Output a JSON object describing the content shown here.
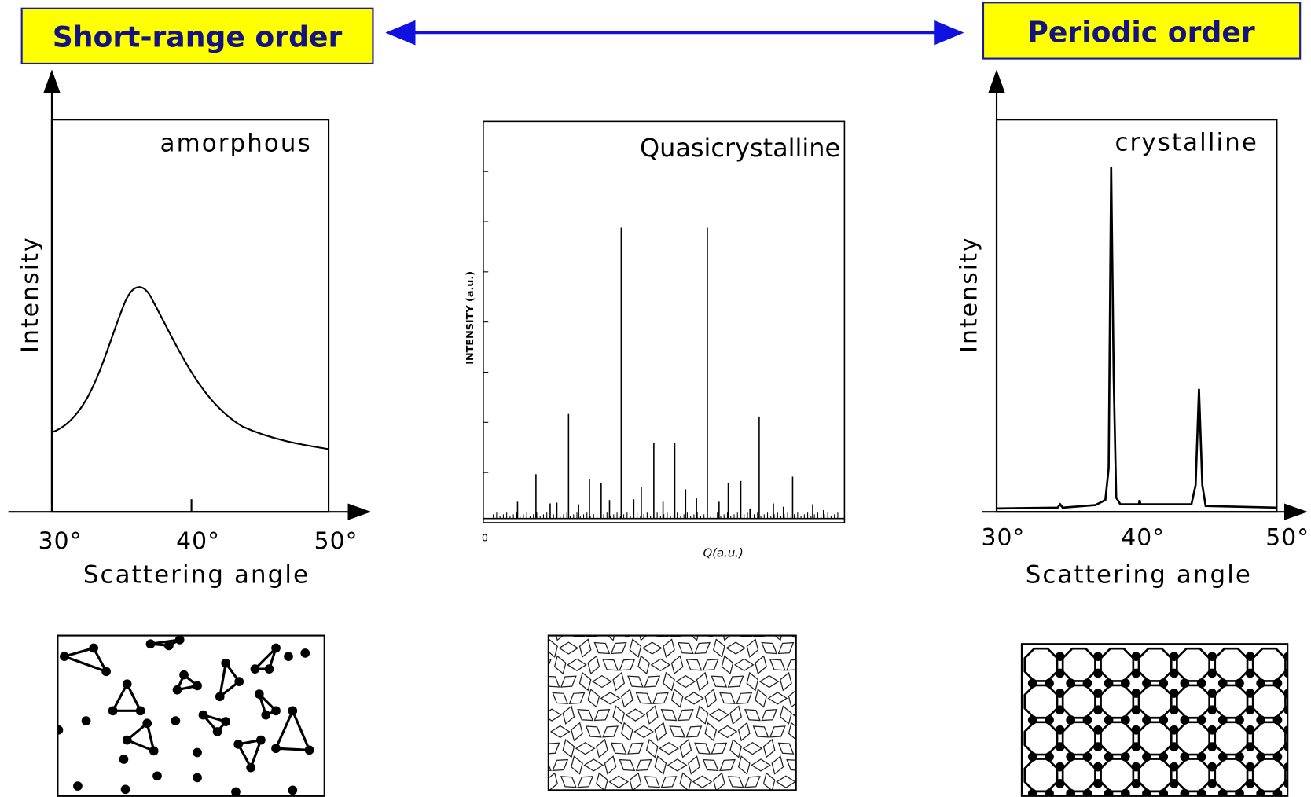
{
  "labels": {
    "left": "Short-range order",
    "right": "Periodic order"
  },
  "plots": [
    {
      "label": "amorphous",
      "y_label": "Intensity",
      "x_label": "Scattering angle",
      "x_ticks": [
        "30°",
        "40°",
        "50°"
      ]
    },
    {
      "label": "Quasicrystalline",
      "y_label": "INTENSITY (a.u.)",
      "x_label": "Q(a.u.)",
      "x_ticks": [
        "0"
      ]
    },
    {
      "label": "crystalline",
      "y_label": "Intensity",
      "x_label": "Scattering angle",
      "x_ticks": [
        "30°",
        "40°",
        "50°"
      ]
    }
  ]
}
